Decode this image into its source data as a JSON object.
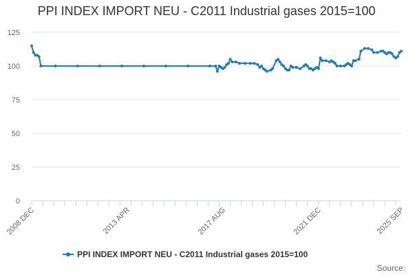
{
  "chart_data": {
    "type": "line",
    "title": "PPI INDEX IMPORT NEU - C2011 Industrial gases 2015=100",
    "xlabel": "",
    "ylabel": "",
    "ylim": [
      0,
      125
    ],
    "yticks": [
      0,
      25,
      50,
      75,
      100,
      125
    ],
    "xtick_labels": [
      "2008 DEC",
      "2013 APR",
      "2017 AUG",
      "2021 DEC",
      "2025 SEP"
    ],
    "grid": "horizontal",
    "legend_position": "bottom",
    "credits": "Source:",
    "series": [
      {
        "name": "PPI INDEX IMPORT NEU - C2011 Industrial gases 2015=100",
        "color": "#1f7ab5",
        "points": [
          [
            "2008 DEC",
            115
          ],
          [
            "2009 JAN",
            110
          ],
          [
            "2009 FEB",
            108
          ],
          [
            "2009 MAR",
            108
          ],
          [
            "2009 APR",
            107
          ],
          [
            "2009 MAY",
            100
          ],
          [
            "2010 JAN",
            100
          ],
          [
            "2011 JAN",
            100
          ],
          [
            "2012 JAN",
            100
          ],
          [
            "2013 JAN",
            100
          ],
          [
            "2014 JAN",
            100
          ],
          [
            "2015 JAN",
            100
          ],
          [
            "2016 JAN",
            100
          ],
          [
            "2017 JAN",
            100
          ],
          [
            "2017 APR",
            100
          ],
          [
            "2017 MAY",
            96
          ],
          [
            "2017 JUN",
            100
          ],
          [
            "2017 JUL",
            99
          ],
          [
            "2017 AUG",
            98
          ],
          [
            "2017 SEP",
            99
          ],
          [
            "2017 OCT",
            101
          ],
          [
            "2017 NOV",
            102
          ],
          [
            "2017 DEC",
            105
          ],
          [
            "2018 JAN",
            103
          ],
          [
            "2018 MAR",
            103
          ],
          [
            "2018 MAY",
            102
          ],
          [
            "2018 AUG",
            102
          ],
          [
            "2018 NOV",
            102
          ],
          [
            "2019 JAN",
            102
          ],
          [
            "2019 MAR",
            101
          ],
          [
            "2019 APR",
            99
          ],
          [
            "2019 MAY",
            100
          ],
          [
            "2019 JUN",
            98
          ],
          [
            "2019 JUL",
            97
          ],
          [
            "2019 AUG",
            96
          ],
          [
            "2019 OCT",
            97
          ],
          [
            "2019 NOV",
            98
          ],
          [
            "2020 JAN",
            104
          ],
          [
            "2020 FEB",
            105
          ],
          [
            "2020 MAR",
            103
          ],
          [
            "2020 APR",
            101
          ],
          [
            "2020 MAY",
            100
          ],
          [
            "2020 JUN",
            98
          ],
          [
            "2020 JUL",
            97
          ],
          [
            "2020 AUG",
            97
          ],
          [
            "2020 SEP",
            100
          ],
          [
            "2020 OCT",
            99
          ],
          [
            "2020 DEC",
            99
          ],
          [
            "2021 FEB",
            98
          ],
          [
            "2021 APR",
            100
          ],
          [
            "2021 MAY",
            101
          ],
          [
            "2021 JUN",
            100
          ],
          [
            "2021 JUL",
            98
          ],
          [
            "2021 AUG",
            98
          ],
          [
            "2021 SEP",
            97
          ],
          [
            "2021 OCT",
            98
          ],
          [
            "2021 NOV",
            99
          ],
          [
            "2021 DEC",
            98
          ],
          [
            "2022 JAN",
            106
          ],
          [
            "2022 FEB",
            104
          ],
          [
            "2022 APR",
            104
          ],
          [
            "2022 JUN",
            103
          ],
          [
            "2022 JUL",
            104
          ],
          [
            "2022 AUG",
            103
          ],
          [
            "2022 SEP",
            102
          ],
          [
            "2022 OCT",
            100
          ],
          [
            "2022 DEC",
            100
          ],
          [
            "2023 FEB",
            100
          ],
          [
            "2023 MAR",
            101
          ],
          [
            "2023 APR",
            102
          ],
          [
            "2023 MAY",
            101
          ],
          [
            "2023 JUN",
            100
          ],
          [
            "2023 JUL",
            104
          ],
          [
            "2023 AUG",
            104
          ],
          [
            "2023 OCT",
            105
          ],
          [
            "2023 NOV",
            111
          ],
          [
            "2024 JAN",
            113
          ],
          [
            "2024 MAR",
            113
          ],
          [
            "2024 MAY",
            112
          ],
          [
            "2024 JUN",
            110
          ],
          [
            "2024 AUG",
            110
          ],
          [
            "2024 OCT",
            111
          ],
          [
            "2024 NOV",
            111
          ],
          [
            "2024 DEC",
            110
          ],
          [
            "2025 JAN",
            109
          ],
          [
            "2025 FEB",
            110
          ],
          [
            "2025 MAR",
            110
          ],
          [
            "2025 APR",
            109
          ],
          [
            "2025 MAY",
            107
          ],
          [
            "2025 JUN",
            106
          ],
          [
            "2025 JUL",
            107
          ],
          [
            "2025 AUG",
            110
          ],
          [
            "2025 SEP",
            111
          ]
        ]
      }
    ]
  }
}
